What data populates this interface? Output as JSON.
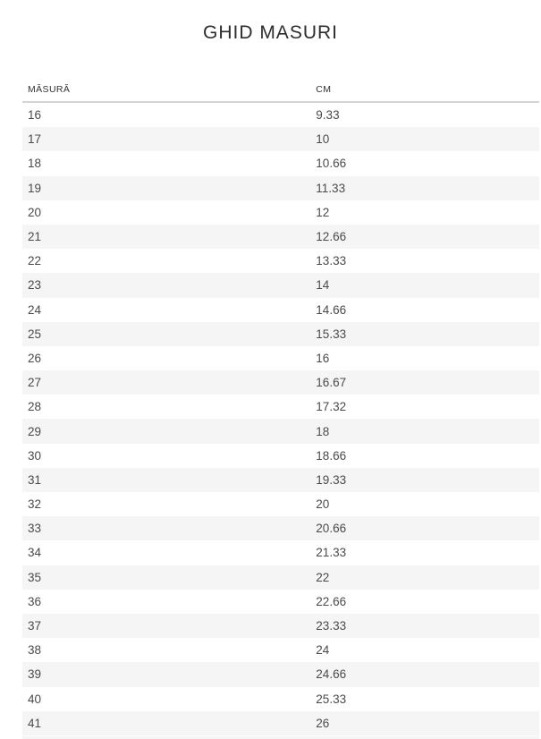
{
  "page": {
    "title": "GHID MASURI"
  },
  "colors": {
    "stripe": "#f5f5f5",
    "header_border": "#d4d4d4",
    "title_text": "#2d2d2d",
    "header_text": "#333333",
    "body_text": "#4a4a4a"
  },
  "table": {
    "columns": [
      {
        "label": "MĂSURĂ"
      },
      {
        "label": "CM"
      }
    ],
    "rows": [
      {
        "size": "16",
        "cm": "9.33"
      },
      {
        "size": "17",
        "cm": "10"
      },
      {
        "size": "18",
        "cm": "10.66"
      },
      {
        "size": "19",
        "cm": "11.33"
      },
      {
        "size": "20",
        "cm": "12"
      },
      {
        "size": "21",
        "cm": "12.66"
      },
      {
        "size": "22",
        "cm": "13.33"
      },
      {
        "size": "23",
        "cm": "14"
      },
      {
        "size": "24",
        "cm": "14.66"
      },
      {
        "size": "25",
        "cm": "15.33"
      },
      {
        "size": "26",
        "cm": "16"
      },
      {
        "size": "27",
        "cm": "16.67"
      },
      {
        "size": "28",
        "cm": "17.32"
      },
      {
        "size": "29",
        "cm": "18"
      },
      {
        "size": "30",
        "cm": "18.66"
      },
      {
        "size": "31",
        "cm": "19.33"
      },
      {
        "size": "32",
        "cm": "20"
      },
      {
        "size": "33",
        "cm": "20.66"
      },
      {
        "size": "34",
        "cm": "21.33"
      },
      {
        "size": "35",
        "cm": "22"
      },
      {
        "size": "36",
        "cm": "22.66"
      },
      {
        "size": "37",
        "cm": "23.33"
      },
      {
        "size": "38",
        "cm": "24"
      },
      {
        "size": "39",
        "cm": "24.66"
      },
      {
        "size": "40",
        "cm": "25.33"
      },
      {
        "size": "41",
        "cm": "26"
      }
    ]
  }
}
